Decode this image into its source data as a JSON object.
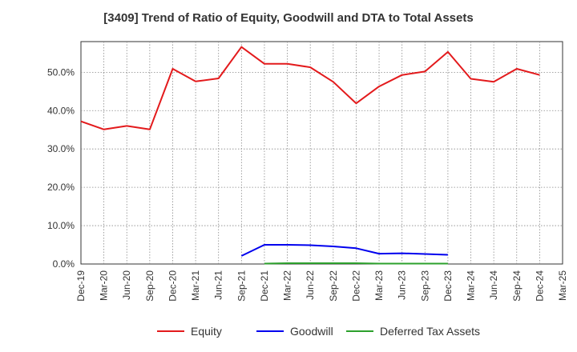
{
  "chart_data": {
    "type": "line",
    "title": "[3409]  Trend of Ratio of Equity, Goodwill and DTA to Total Assets",
    "xlabel": "",
    "ylabel": "",
    "ylim": [
      0,
      58
    ],
    "yticks": [
      "0.0%",
      "10.0%",
      "20.0%",
      "30.0%",
      "40.0%",
      "50.0%"
    ],
    "ytick_values": [
      0,
      10,
      20,
      30,
      40,
      50
    ],
    "categories": [
      "Dec-19",
      "Mar-20",
      "Jun-20",
      "Sep-20",
      "Dec-20",
      "Mar-21",
      "Jun-21",
      "Sep-21",
      "Dec-21",
      "Mar-22",
      "Jun-22",
      "Sep-22",
      "Dec-22",
      "Mar-23",
      "Jun-23",
      "Sep-23",
      "Dec-23",
      "Mar-24",
      "Jun-24",
      "Sep-24",
      "Dec-24",
      "Mar-25"
    ],
    "grid": true,
    "legend_position": "bottom",
    "series": [
      {
        "name": "Equity",
        "color": "#e31a1c",
        "values": [
          37.2,
          35.1,
          36.0,
          35.1,
          50.9,
          47.6,
          48.4,
          56.6,
          52.2,
          52.2,
          51.3,
          47.5,
          41.9,
          46.3,
          49.3,
          50.2,
          55.3,
          48.3,
          47.5,
          50.9,
          49.3,
          null
        ]
      },
      {
        "name": "Goodwill",
        "color": "#0000ee",
        "values": [
          null,
          null,
          null,
          null,
          null,
          null,
          null,
          2.1,
          5.0,
          5.0,
          4.9,
          4.6,
          4.1,
          2.7,
          2.8,
          2.6,
          2.4,
          null,
          null,
          null,
          null,
          null
        ]
      },
      {
        "name": "Deferred Tax Assets",
        "color": "#2ca02c",
        "values": [
          null,
          null,
          null,
          null,
          null,
          null,
          null,
          null,
          0.1,
          0.2,
          0.2,
          0.2,
          0.2,
          0.1,
          0.1,
          0.1,
          0.1,
          null,
          null,
          null,
          null,
          null
        ]
      }
    ]
  }
}
